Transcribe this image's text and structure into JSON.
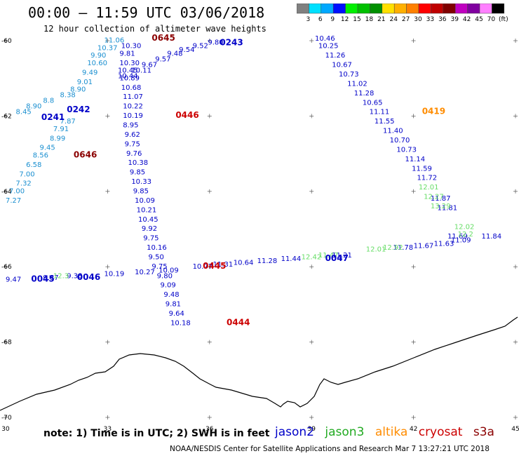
{
  "header": {
    "title": "00:00 – 11:59 UTC 03/06/2018",
    "subtitle": "12 hour collection of altimeter wave heights"
  },
  "colorbar": {
    "labels": [
      "3",
      "6",
      "9",
      "12",
      "15",
      "18",
      "21",
      "24",
      "27",
      "30",
      "33",
      "36",
      "39",
      "42",
      "45",
      "70",
      "(ft)"
    ],
    "colors": [
      "#808080",
      "#00e0ff",
      "#00a8ff",
      "#0010ff",
      "#00f000",
      "#00c000",
      "#009000",
      "#ffe000",
      "#ffb000",
      "#ff8000",
      "#ff0000",
      "#c00000",
      "#800000",
      "#c000c0",
      "#8000a0",
      "#ff80ff",
      "#000000"
    ]
  },
  "axes": {
    "lon_labels": [
      "30",
      "33",
      "36",
      "39",
      "42",
      "45"
    ],
    "lat_labels": [
      "-60",
      "-62",
      "-64",
      "-66",
      "-68",
      "-70"
    ]
  },
  "satellite_colors": {
    "jason2": "#0000c8",
    "jason2_light": "#1e90ff",
    "jason3": "#22aa22",
    "altika": "#ff8c00",
    "cryosat": "#cc0000",
    "s3a": "#8b0000"
  },
  "tracks": [
    {
      "sat": "s3a",
      "color": "#1a8fd0",
      "points": [
        [
          32.9,
          -60.05,
          "11.06"
        ],
        [
          32.7,
          -60.25,
          "10.37"
        ],
        [
          32.5,
          -60.45,
          "9.90"
        ],
        [
          32.4,
          -60.65,
          "10.60"
        ],
        [
          32.25,
          -60.9,
          "9.49"
        ],
        [
          32.1,
          -61.15,
          "9.01"
        ],
        [
          31.9,
          -61.35,
          "8.90"
        ],
        [
          31.6,
          -61.5,
          "8.38"
        ],
        [
          31.1,
          -61.65,
          "8.8"
        ],
        [
          30.6,
          -61.8,
          "8.90"
        ],
        [
          30.3,
          -61.95,
          "8.45"
        ],
        [
          31.6,
          -62.2,
          "7.87"
        ],
        [
          31.4,
          -62.4,
          "7.91"
        ],
        [
          31.3,
          -62.65,
          "8.99"
        ],
        [
          31.0,
          -62.9,
          "9.45"
        ],
        [
          30.8,
          -63.1,
          "8.56"
        ],
        [
          30.6,
          -63.35,
          "6.58"
        ],
        [
          30.4,
          -63.6,
          "7.00"
        ],
        [
          30.3,
          -63.85,
          "7.32"
        ],
        [
          30.1,
          -64.05,
          "7.00"
        ],
        [
          30.0,
          -64.3,
          "7.27"
        ]
      ]
    },
    {
      "sat": "jason2",
      "color": "#0000c8",
      "points": [
        [
          33.4,
          -60.2,
          "10.30"
        ],
        [
          33.35,
          -60.4,
          "9.81"
        ],
        [
          33.35,
          -60.65,
          "10.30"
        ],
        [
          33.3,
          -60.85,
          "10.45"
        ],
        [
          33.35,
          -61.05,
          "10.89"
        ],
        [
          33.4,
          -61.3,
          "10.68"
        ],
        [
          33.45,
          -61.55,
          "11.07"
        ],
        [
          33.45,
          -61.8,
          "10.22"
        ],
        [
          33.45,
          -62.05,
          "10.19"
        ],
        [
          33.45,
          -62.3,
          "8.95"
        ],
        [
          33.5,
          -62.55,
          "9.62"
        ],
        [
          33.5,
          -62.8,
          "9.75"
        ],
        [
          33.55,
          -63.05,
          "9.76"
        ],
        [
          33.6,
          -63.3,
          "10.38"
        ],
        [
          33.65,
          -63.55,
          "9.85"
        ],
        [
          33.7,
          -63.8,
          "10.33"
        ],
        [
          33.75,
          -64.05,
          "9.85"
        ],
        [
          33.8,
          -64.3,
          "10.09"
        ],
        [
          33.85,
          -64.55,
          "10.21"
        ],
        [
          33.9,
          -64.8,
          "10.45"
        ],
        [
          34.0,
          -65.05,
          "9.92"
        ],
        [
          34.05,
          -65.3,
          "9.75"
        ],
        [
          34.15,
          -65.55,
          "10.16"
        ],
        [
          34.2,
          -65.8,
          "9.50"
        ],
        [
          34.3,
          -66.05,
          "9.75"
        ],
        [
          34.45,
          -66.3,
          "9.80"
        ],
        [
          34.55,
          -66.55,
          "9.09"
        ],
        [
          34.65,
          -66.8,
          "9.48"
        ],
        [
          34.7,
          -67.05,
          "9.81"
        ],
        [
          34.8,
          -67.3,
          "9.64"
        ],
        [
          34.85,
          -67.55,
          "10.18"
        ]
      ]
    },
    {
      "sat": "jason2",
      "color": "#0000c8",
      "points": [
        [
          33.3,
          -61.0,
          "10.44"
        ],
        [
          33.7,
          -60.85,
          "10.11"
        ],
        [
          34.0,
          -60.7,
          "9.67"
        ],
        [
          34.4,
          -60.55,
          "9.57"
        ],
        [
          34.75,
          -60.4,
          "9.48"
        ],
        [
          35.1,
          -60.3,
          "9.54"
        ],
        [
          35.5,
          -60.2,
          "9.52"
        ],
        [
          35.95,
          -60.1,
          "9.80"
        ]
      ]
    },
    {
      "sat": "jason2",
      "color": "#0000c8",
      "points": [
        [
          39.1,
          -60.0,
          "10.46"
        ],
        [
          39.2,
          -60.2,
          "10.25"
        ],
        [
          39.4,
          -60.45,
          "11.26"
        ],
        [
          39.6,
          -60.7,
          "10.67"
        ],
        [
          39.8,
          -60.95,
          "10.73"
        ],
        [
          40.05,
          -61.2,
          "11.02"
        ],
        [
          40.25,
          -61.45,
          "11.28"
        ],
        [
          40.5,
          -61.7,
          "10.65"
        ],
        [
          40.7,
          -61.95,
          "11.11"
        ],
        [
          40.85,
          -62.2,
          "11.55"
        ],
        [
          41.1,
          -62.45,
          "11.40"
        ],
        [
          41.3,
          -62.7,
          "10.70"
        ],
        [
          41.5,
          -62.95,
          "10.73"
        ],
        [
          41.75,
          -63.2,
          "11.14"
        ],
        [
          41.95,
          -63.45,
          "11.59"
        ],
        [
          42.1,
          -63.7,
          "11.72"
        ],
        [
          42.5,
          -64.25,
          "11.87"
        ],
        [
          42.7,
          -64.5,
          "11.81"
        ],
        [
          43.0,
          -65.25,
          "11.69"
        ]
      ]
    },
    {
      "sat": "jason3",
      "color": "#66dd66",
      "points": [
        [
          42.15,
          -63.95,
          "12.01"
        ],
        [
          42.3,
          -64.2,
          "12.27"
        ],
        [
          42.5,
          -64.45,
          "13.29"
        ],
        [
          43.2,
          -65.0,
          "12.02"
        ],
        [
          43.3,
          -65.2,
          "12.2"
        ]
      ]
    },
    {
      "sat": "jason2",
      "color": "#0000c8",
      "points": [
        [
          30.0,
          -66.4,
          "9.47"
        ],
        [
          31.1,
          -66.35,
          "9.87"
        ],
        [
          31.8,
          -66.3,
          "9.38"
        ],
        [
          32.9,
          -66.25,
          "10.19"
        ],
        [
          33.8,
          -66.2,
          "10.27"
        ],
        [
          34.5,
          -66.15,
          "10.09"
        ],
        [
          35.5,
          -66.05,
          "10.77"
        ],
        [
          36.1,
          -66.0,
          "11.31"
        ],
        [
          36.7,
          -65.95,
          "10.64"
        ],
        [
          37.4,
          -65.9,
          "11.28"
        ],
        [
          38.1,
          -65.85,
          "11.44"
        ],
        [
          39.6,
          -65.75,
          "11.21"
        ],
        [
          41.4,
          -65.55,
          "11.78"
        ],
        [
          42.0,
          -65.5,
          "11.67"
        ],
        [
          42.6,
          -65.45,
          "11.63"
        ],
        [
          43.1,
          -65.35,
          "11.09"
        ],
        [
          44.0,
          -65.25,
          "11.84"
        ]
      ]
    },
    {
      "sat": "jason3",
      "color": "#66dd66",
      "points": [
        [
          31.4,
          -66.3,
          "12.3"
        ],
        [
          38.7,
          -65.8,
          "12.42"
        ],
        [
          39.2,
          -65.75,
          "11.47"
        ],
        [
          40.6,
          -65.6,
          "12.01"
        ],
        [
          41.1,
          -65.55,
          "12.92"
        ]
      ]
    }
  ],
  "time_labels": [
    {
      "text": "0645",
      "color": "#8b0000",
      "lon": 34.3,
      "lat": -60.0
    },
    {
      "text": "0243",
      "color": "#0000c8",
      "lon": 36.3,
      "lat": -60.12
    },
    {
      "text": "0241",
      "color": "#0000c8",
      "lon": 31.05,
      "lat": -62.1
    },
    {
      "text": "0242",
      "color": "#0000c8",
      "lon": 31.8,
      "lat": -61.9
    },
    {
      "text": "0446",
      "color": "#cc0000",
      "lon": 35.0,
      "lat": -62.05
    },
    {
      "text": "0646",
      "color": "#8b0000",
      "lon": 32.0,
      "lat": -63.1
    },
    {
      "text": "0419",
      "color": "#ff8c00",
      "lon": 42.25,
      "lat": -61.95
    },
    {
      "text": "0445",
      "color": "#cc0000",
      "lon": 35.8,
      "lat": -66.05
    },
    {
      "text": "0047",
      "color": "#0000c8",
      "lon": 39.4,
      "lat": -65.85
    },
    {
      "text": "0045",
      "color": "#0000c8",
      "lon": 30.75,
      "lat": -66.4
    },
    {
      "text": "0046",
      "color": "#0000c8",
      "lon": 32.1,
      "lat": -66.35
    },
    {
      "text": "0444",
      "color": "#cc0000",
      "lon": 36.5,
      "lat": -67.55
    }
  ],
  "note": "note:  1) Time is in UTC;  2) SWH is in feet",
  "legend": [
    {
      "name": "jason2",
      "color": "#0000c8"
    },
    {
      "name": "jason3",
      "color": "#22aa22"
    },
    {
      "name": "altika",
      "color": "#ff8c00"
    },
    {
      "name": "cryosat",
      "color": "#cc0000"
    },
    {
      "name": "s3a",
      "color": "#8b0000"
    }
  ],
  "credit": "NOAA/NESDIS Center for Satellite Applications and Research    Mar  7 13:27:21 UTC 2018"
}
